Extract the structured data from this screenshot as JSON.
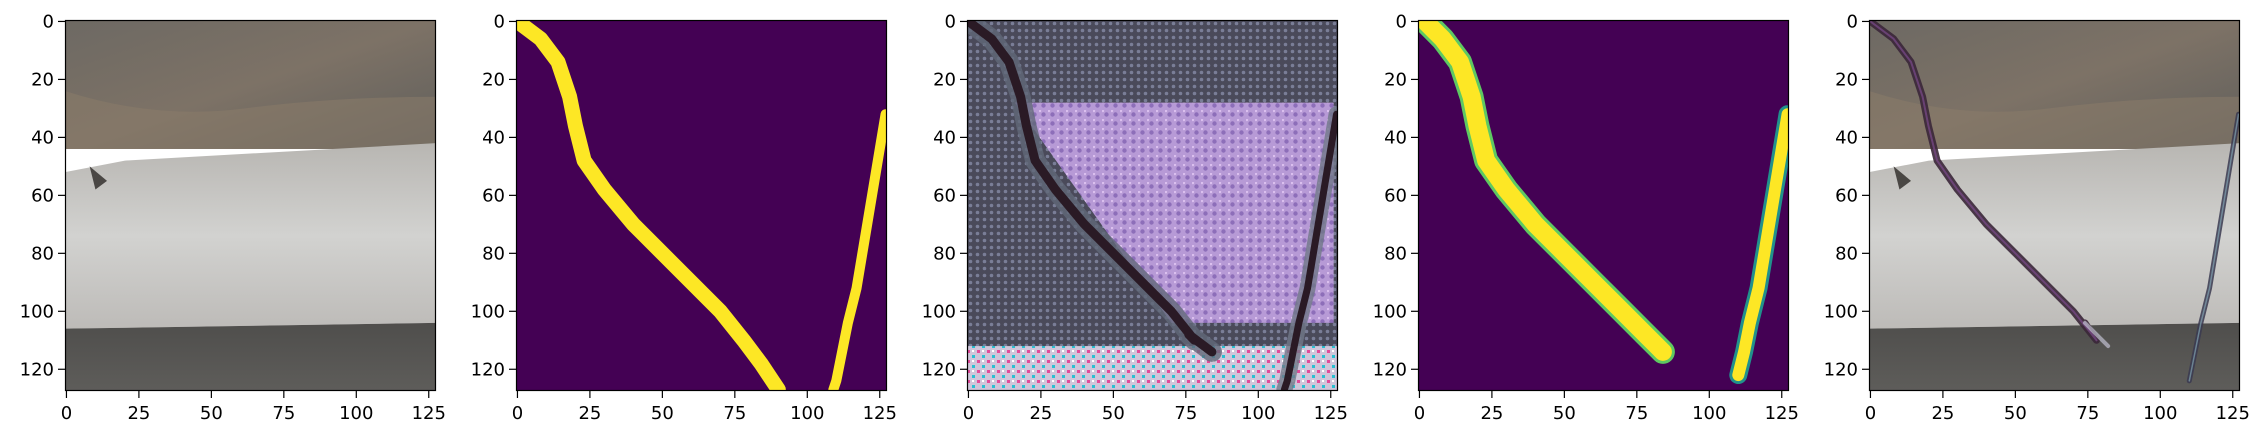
{
  "figure": {
    "panels": [
      {
        "name": "input-photo-panel",
        "kind": "photo"
      },
      {
        "name": "ground-truth-mask-panel",
        "kind": "mask_binary"
      },
      {
        "name": "generated-texture-panel",
        "kind": "synthetic"
      },
      {
        "name": "predicted-mask-panel",
        "kind": "mask_soft"
      },
      {
        "name": "overlay-panel",
        "kind": "overlay"
      }
    ],
    "x_ticks": [
      "0",
      "25",
      "50",
      "75",
      "100",
      "125"
    ],
    "x_tick_values": [
      0,
      25,
      50,
      75,
      100,
      125
    ],
    "y_ticks": [
      "0",
      "20",
      "40",
      "60",
      "80",
      "100",
      "120"
    ],
    "y_tick_values": [
      0,
      20,
      40,
      60,
      80,
      100,
      120
    ],
    "image_extent": [
      128,
      128
    ]
  },
  "colors": {
    "viridis_dark": "#440154",
    "viridis_yellow": "#fde725",
    "viridis_green": "#5ec962",
    "viridis_teal": "#21918c",
    "road_light": "#c9c9c9",
    "road_dark": "#5a5a58",
    "soil_brown": "#7a6a5a",
    "crack_dark": "#2a1a25",
    "purple_bg": "#b898d8",
    "magenta": "#e04a9a"
  }
}
